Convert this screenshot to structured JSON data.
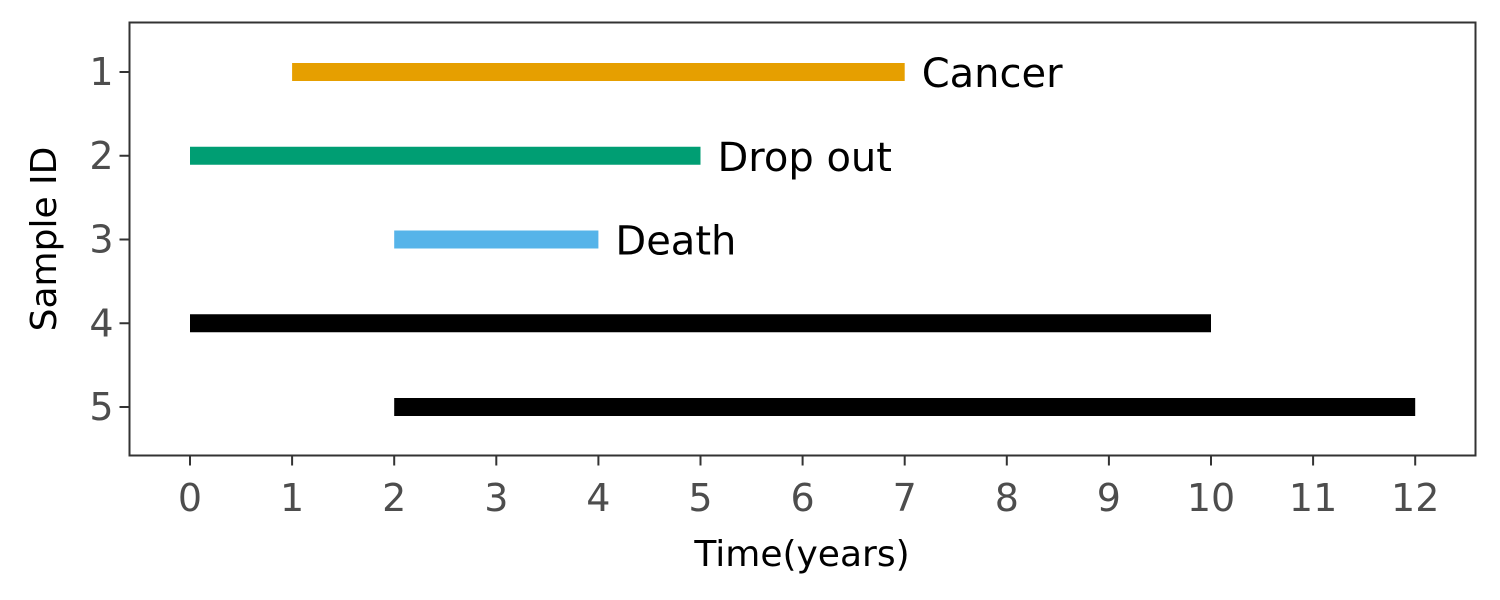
{
  "chart_data": {
    "type": "timeline",
    "xlabel": "Time(years)",
    "ylabel": "Sample ID",
    "xlim": [
      -0.6,
      12.6
    ],
    "x_ticks": [
      0,
      1,
      2,
      3,
      4,
      5,
      6,
      7,
      8,
      9,
      10,
      11,
      12
    ],
    "y_categories": [
      "1",
      "2",
      "3",
      "4",
      "5"
    ],
    "grid": false,
    "segments": [
      {
        "id": "1",
        "start": 1,
        "end": 7,
        "label": "Cancer",
        "color": "#E69F00"
      },
      {
        "id": "2",
        "start": 0,
        "end": 5,
        "label": "Drop out",
        "color": "#009E73"
      },
      {
        "id": "3",
        "start": 2,
        "end": 4,
        "label": "Death",
        "color": "#56B4E9"
      },
      {
        "id": "4",
        "start": 0,
        "end": 10,
        "label": "",
        "color": "#000000"
      },
      {
        "id": "5",
        "start": 2,
        "end": 12,
        "label": "",
        "color": "#000000"
      }
    ]
  }
}
